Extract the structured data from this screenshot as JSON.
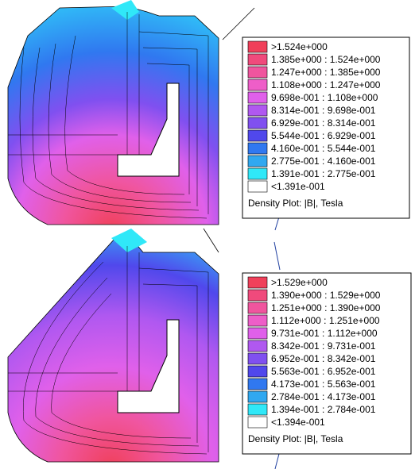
{
  "panels": [
    {
      "legend": {
        "entries": [
          {
            "label": ">1.524e+000",
            "color": "#f0405a"
          },
          {
            "label": "1.385e+000 : 1.524e+000",
            "color": "#f04a7c"
          },
          {
            "label": "1.247e+000 : 1.385e+000",
            "color": "#f0559e"
          },
          {
            "label": "1.108e+000 : 1.247e+000",
            "color": "#ee5ec8"
          },
          {
            "label": "9.698e-001 : 1.108e+000",
            "color": "#e060ea"
          },
          {
            "label": "8.314e-001 : 9.698e-001",
            "color": "#b058f0"
          },
          {
            "label": "6.929e-001 : 8.314e-001",
            "color": "#8050f0"
          },
          {
            "label": "5.544e-001 : 6.929e-001",
            "color": "#5048ec"
          },
          {
            "label": "4.160e-001 : 5.544e-001",
            "color": "#3078f0"
          },
          {
            "label": "2.775e-001 : 4.160e-001",
            "color": "#30a8f0"
          },
          {
            "label": "1.391e-001 : 2.775e-001",
            "color": "#30e8f8"
          },
          {
            "label": "<1.391e-001",
            "color": "#ffffff"
          }
        ],
        "title": "Density Plot: |B|, Tesla"
      }
    },
    {
      "legend": {
        "entries": [
          {
            "label": ">1.529e+000",
            "color": "#f0405a"
          },
          {
            "label": "1.390e+000 : 1.529e+000",
            "color": "#f04a7c"
          },
          {
            "label": "1.251e+000 : 1.390e+000",
            "color": "#f0559e"
          },
          {
            "label": "1.112e+000 : 1.251e+000",
            "color": "#ee5ec8"
          },
          {
            "label": "9.731e-001 : 1.112e+000",
            "color": "#e060ea"
          },
          {
            "label": "8.342e-001 : 9.731e-001",
            "color": "#b058f0"
          },
          {
            "label": "6.952e-001 : 8.342e-001",
            "color": "#8050f0"
          },
          {
            "label": "5.563e-001 : 6.952e-001",
            "color": "#5048ec"
          },
          {
            "label": "4.173e-001 : 5.563e-001",
            "color": "#3078f0"
          },
          {
            "label": "2.784e-001 : 4.173e-001",
            "color": "#30a8f0"
          },
          {
            "label": "1.394e-001 : 2.784e-001",
            "color": "#30e8f8"
          },
          {
            "label": "<1.394e-001",
            "color": "#ffffff"
          }
        ],
        "title": "Density Plot: |B|, Tesla"
      }
    }
  ]
}
